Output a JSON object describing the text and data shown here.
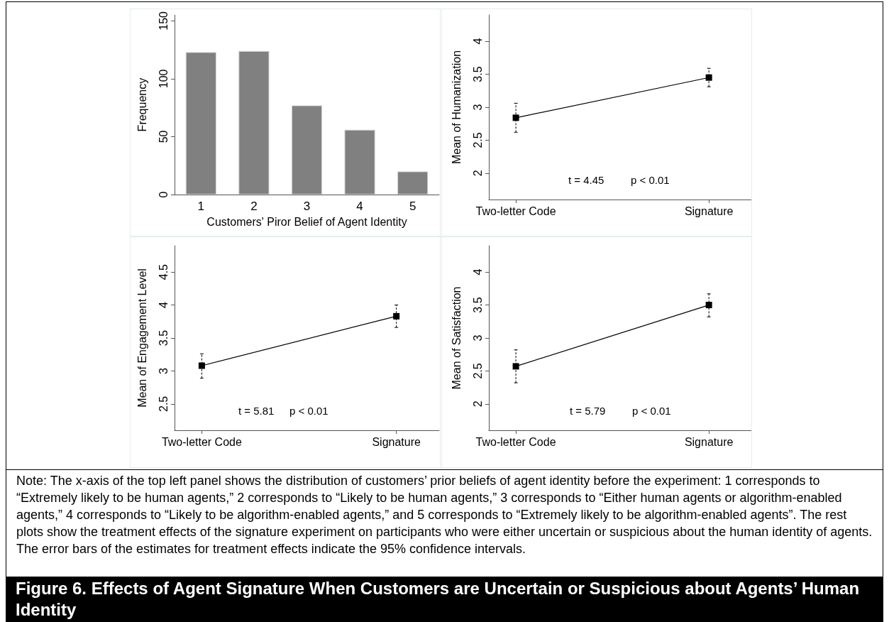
{
  "chart_data": [
    {
      "type": "bar",
      "title": "Figure 6. Effects of Agent Signature When Customers are Uncertain or Suspicious about Agents’ Human Identity",
      "annotations": [
        "Note: The x-axis of the top left panel shows the distribution of customers’ prior beliefs of agent identity before the experiment: 1 corresponds to “Extremely likely to be human agents,” 2 corresponds to “Likely to be human agents,” 3 corresponds to “Either human agents or algorithm-enabled agents,” 4 corresponds to “Likely to be algorithm-enabled agents,” and 5 corresponds to “Extremely likely to be algorithm-enabled agents”. The rest plots show the treatment effects of the signature experiment on participants who were either uncertain or suspicious about the human identity of agents. The error bars of the estimates for treatment effects indicate the 95% confidence intervals."
      ],
      "categories": [
        "1",
        "2",
        "3",
        "4",
        "5"
      ],
      "values": [
        123,
        124,
        77,
        56,
        20
      ],
      "color": "#808080",
      "ylim": [
        0,
        155
      ],
      "yticks": [
        0,
        50,
        100,
        150
      ],
      "xlabel": "Customers' Piror Belief of Agent Identity",
      "ylabel": "Frequency"
    },
    {
      "type": "line",
      "categories": [
        "Two-letter Code",
        "Signature"
      ],
      "values": [
        2.84,
        3.45
      ],
      "errors": [
        [
          2.62,
          3.06
        ],
        [
          3.31,
          3.59
        ]
      ],
      "color": "#000000",
      "marker": "square",
      "ylim": [
        1.6,
        4.4
      ],
      "yticks": [
        2,
        2.5,
        3,
        3.5,
        4
      ],
      "ylabel": "Mean of Humanization",
      "annotations": [
        "t = 4.45",
        "p < 0.01"
      ]
    },
    {
      "type": "line",
      "categories": [
        "Two-letter Code",
        "Signature"
      ],
      "values": [
        3.08,
        3.83
      ],
      "errors": [
        [
          2.89,
          3.26
        ],
        [
          3.66,
          4.0
        ]
      ],
      "color": "#000000",
      "marker": "square",
      "ylim": [
        2.1,
        4.9
      ],
      "yticks": [
        2.5,
        3,
        3.5,
        4,
        4.5
      ],
      "ylabel": "Mean of Engagement Level",
      "annotations": [
        "t = 5.81",
        "p < 0.01"
      ]
    },
    {
      "type": "line",
      "categories": [
        "Two-letter Code",
        "Signature"
      ],
      "values": [
        2.57,
        3.5
      ],
      "errors": [
        [
          2.32,
          2.82
        ],
        [
          3.32,
          3.67
        ]
      ],
      "color": "#000000",
      "marker": "square",
      "ylim": [
        1.6,
        4.4
      ],
      "yticks": [
        2,
        2.5,
        3,
        3.5,
        4
      ],
      "ylabel": "Mean of Satisfaction",
      "annotations": [
        "t = 5.79",
        "p < 0.01"
      ]
    }
  ]
}
